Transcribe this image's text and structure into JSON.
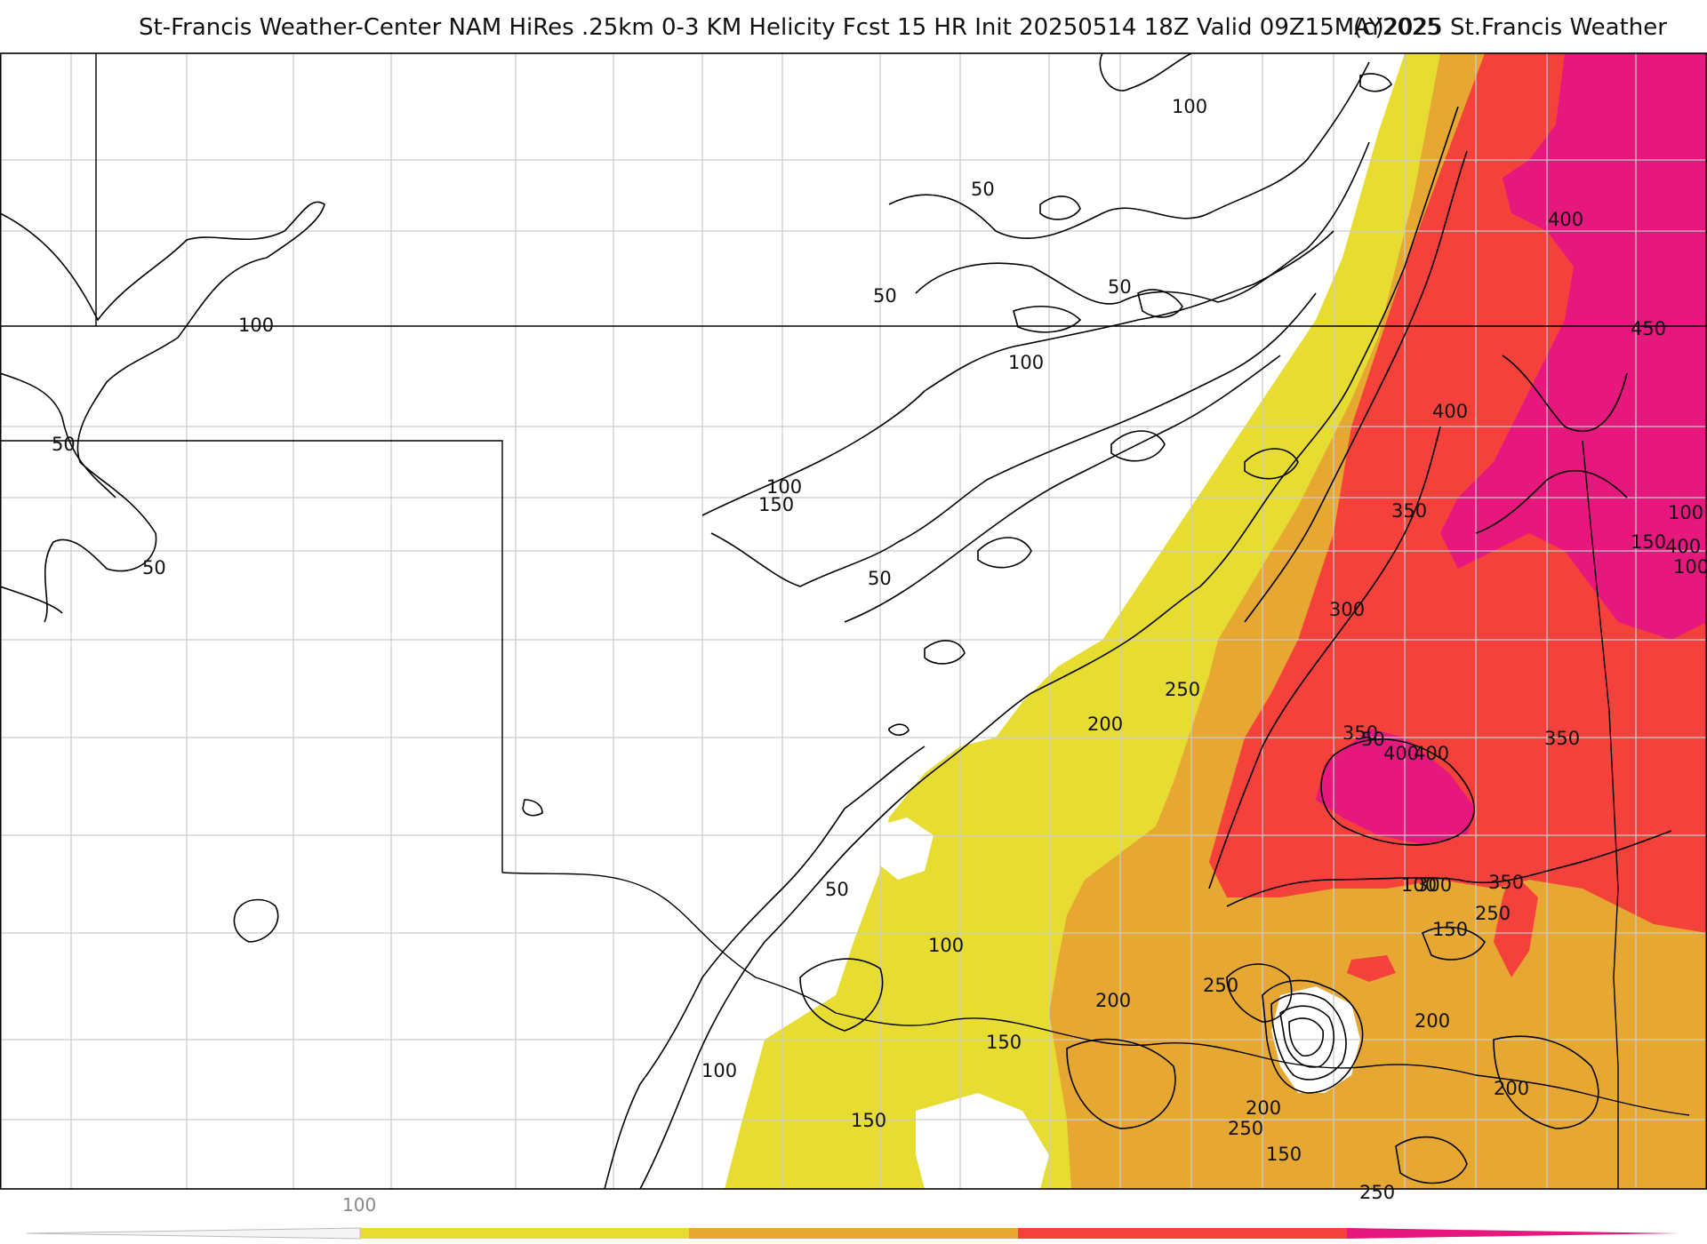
{
  "title": {
    "main": "St-Francis Weather-Center NAM HiRes .25km 0-3 KM Helicity Fcst 15 HR Init 20250514 18Z  Valid 09Z15MAY2025",
    "copyright": "(c)2025 St.Francis Weather"
  },
  "colors": {
    "band_150_200": "#e6dc32",
    "band_200_300": "#e6a832",
    "band_300_400": "#f5413c",
    "band_400_plus": "#e6177d",
    "contour": "#000000",
    "border_state": "#000000",
    "border_county": "#c8c8c8"
  },
  "contour_labels": [
    {
      "text": "100"
    },
    {
      "text": "50"
    },
    {
      "text": "50"
    },
    {
      "text": "100"
    },
    {
      "text": "50"
    },
    {
      "text": "100"
    },
    {
      "text": "50"
    },
    {
      "text": "50"
    },
    {
      "text": "100"
    },
    {
      "text": "150"
    },
    {
      "text": "400"
    },
    {
      "text": "450"
    },
    {
      "text": "100"
    },
    {
      "text": "150"
    },
    {
      "text": "100"
    },
    {
      "text": "50"
    },
    {
      "text": "100"
    },
    {
      "text": "400"
    },
    {
      "text": "350"
    },
    {
      "text": "400"
    },
    {
      "text": "300"
    },
    {
      "text": "400"
    },
    {
      "text": "50"
    },
    {
      "text": "100"
    },
    {
      "text": "150"
    },
    {
      "text": "250"
    },
    {
      "text": "200"
    },
    {
      "text": "350"
    },
    {
      "text": "400"
    },
    {
      "text": "350"
    },
    {
      "text": "50"
    },
    {
      "text": "300"
    },
    {
      "text": "350"
    },
    {
      "text": "250"
    },
    {
      "text": "100"
    },
    {
      "text": "250"
    },
    {
      "text": "200"
    },
    {
      "text": "150"
    },
    {
      "text": "200"
    },
    {
      "text": "100"
    },
    {
      "text": "200"
    },
    {
      "text": "150"
    },
    {
      "text": "250"
    },
    {
      "text": "150"
    },
    {
      "text": "200"
    },
    {
      "text": "250"
    }
  ],
  "colorbar": {
    "tick_label": "100"
  }
}
